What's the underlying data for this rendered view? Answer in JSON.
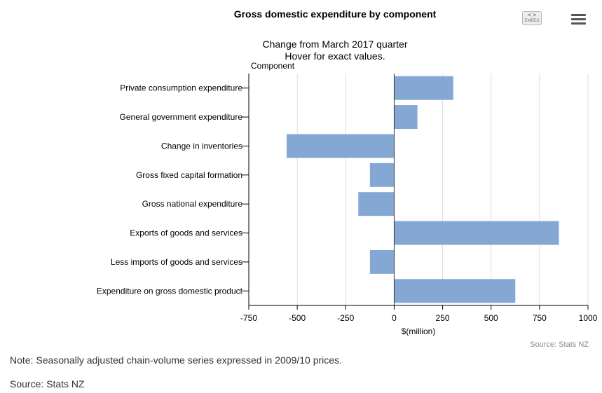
{
  "header": {
    "title": "Gross domestic expenditure by component",
    "subtitle_line1": "Change from March 2017 quarter",
    "subtitle_line2": "Hover for exact values."
  },
  "toolbar": {
    "embed_arrows": "< >",
    "embed_label": "EMBED",
    "menu_icon": "hamburger-menu-icon"
  },
  "chart_data": {
    "type": "bar",
    "orientation": "horizontal",
    "title": "Gross domestic expenditure by component",
    "subtitle": "Change from March 2017 quarter",
    "category_axis_title": "Component",
    "xlabel": "$(million)",
    "xlim": [
      -750,
      1000
    ],
    "xticks": [
      -750,
      -500,
      -250,
      0,
      250,
      500,
      750,
      1000
    ],
    "grid": true,
    "bar_color": "#84a7d3",
    "categories": [
      "Private consumption expenditure",
      "General government expenditure",
      "Change in inventories",
      "Gross fixed capital formation",
      "Gross national expenditure",
      "Exports of goods and services",
      "Less imports of goods and services",
      "Expenditure on gross domestic product"
    ],
    "values": [
      305,
      120,
      -555,
      -125,
      -185,
      850,
      -125,
      625
    ]
  },
  "credit": "Source: Stats NZ",
  "footer": {
    "note": "Note: Seasonally adjusted chain-volume series expressed in 2009/10 prices.",
    "source": "Source: Stats NZ"
  }
}
